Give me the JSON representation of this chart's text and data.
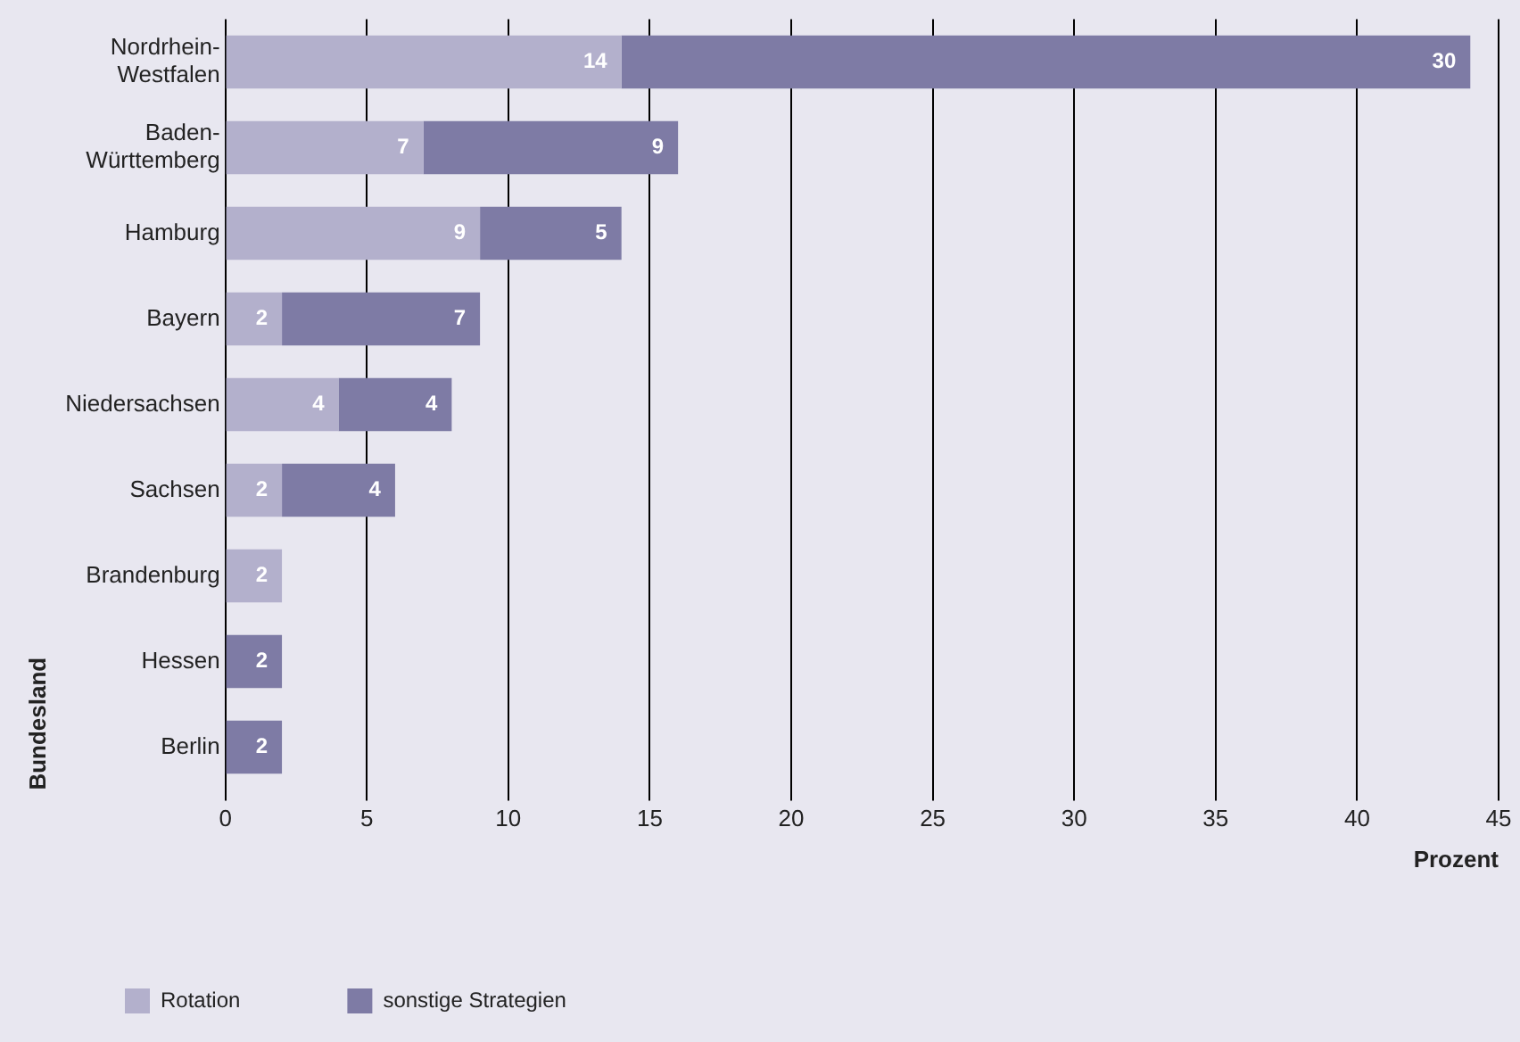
{
  "chart_data": {
    "type": "bar",
    "orientation": "horizontal",
    "stacked": true,
    "categories": [
      [
        "Nordrhein-",
        "Westfalen"
      ],
      [
        "Baden-",
        "Württemberg"
      ],
      "Hamburg",
      "Bayern",
      "Niedersachsen",
      "Sachsen",
      "Brandenburg",
      "Hessen",
      "Berlin"
    ],
    "series": [
      {
        "name": "Rotation",
        "color": "#b3b0cc",
        "values": [
          14,
          7,
          9,
          2,
          4,
          2,
          2,
          null,
          null
        ]
      },
      {
        "name": "sonstige Strategien",
        "color": "#7e7ba5",
        "values": [
          30,
          9,
          5,
          7,
          4,
          4,
          null,
          2,
          2
        ]
      }
    ],
    "xlabel": "Prozent",
    "ylabel": "Bundesland",
    "xlim": [
      0,
      45
    ],
    "xticks": [
      0,
      5,
      10,
      15,
      20,
      25,
      30,
      35,
      40,
      45
    ],
    "grid": "x",
    "legend": "bottom left",
    "data_labels": true
  }
}
